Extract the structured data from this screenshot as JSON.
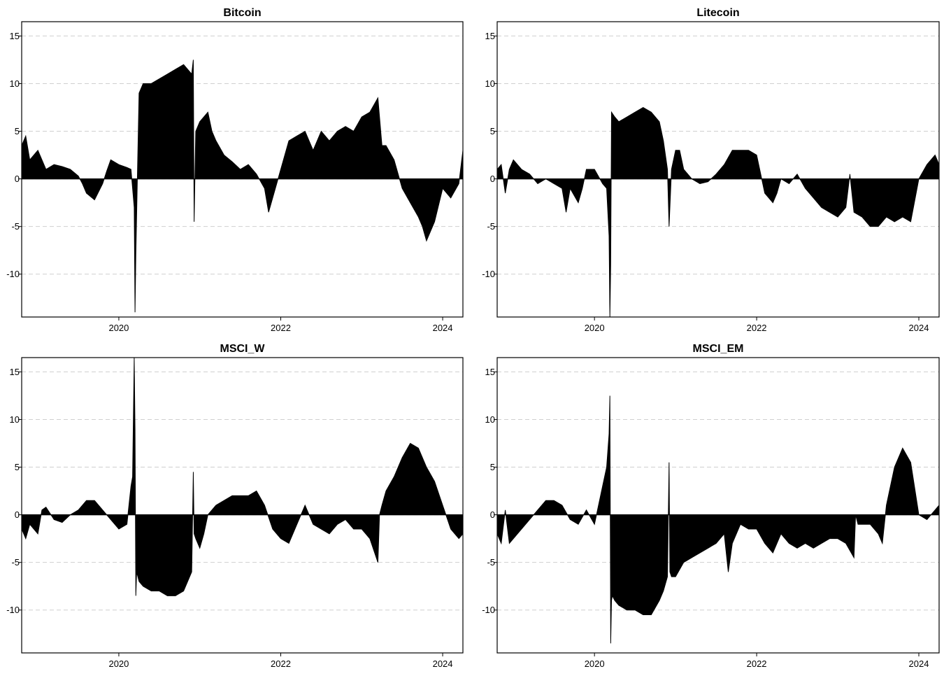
{
  "chart_data": [
    {
      "type": "area",
      "title": "Bitcoin",
      "xlabel": "",
      "ylabel": "",
      "xlim": [
        2018.8,
        2024.25
      ],
      "ylim": [
        -14.5,
        16.5
      ],
      "xticks": [
        2020,
        2022,
        2024
      ],
      "yticks": [
        -10,
        -5,
        0,
        5,
        10,
        15
      ],
      "grid": "dashed horizontal",
      "x": [
        2018.8,
        2018.85,
        2018.9,
        2019.0,
        2019.1,
        2019.2,
        2019.3,
        2019.4,
        2019.5,
        2019.55,
        2019.6,
        2019.7,
        2019.8,
        2019.85,
        2019.9,
        2020.0,
        2020.1,
        2020.15,
        2020.18,
        2020.19,
        2020.2,
        2020.21,
        2020.25,
        2020.3,
        2020.4,
        2020.5,
        2020.6,
        2020.7,
        2020.8,
        2020.85,
        2020.9,
        2020.92,
        2020.93,
        2020.95,
        2021.0,
        2021.1,
        2021.15,
        2021.2,
        2021.3,
        2021.4,
        2021.5,
        2021.6,
        2021.7,
        2021.8,
        2021.85,
        2021.9,
        2022.0,
        2022.1,
        2022.2,
        2022.3,
        2022.4,
        2022.5,
        2022.6,
        2022.7,
        2022.8,
        2022.9,
        2023.0,
        2023.1,
        2023.2,
        2023.25,
        2023.3,
        2023.4,
        2023.5,
        2023.6,
        2023.7,
        2023.75,
        2023.8,
        2023.9,
        2024.0,
        2024.1,
        2024.2,
        2024.25
      ],
      "values": [
        3.5,
        4.5,
        2.0,
        3.0,
        1.0,
        1.5,
        1.3,
        1.0,
        0.3,
        -0.5,
        -1.5,
        -2.2,
        -0.5,
        0.8,
        2.0,
        1.5,
        1.2,
        1.0,
        -2.0,
        -3.0,
        -14.0,
        -8.0,
        9.0,
        10.0,
        10.0,
        10.5,
        11.0,
        11.5,
        12.0,
        11.5,
        11.0,
        12.5,
        -4.5,
        5.0,
        6.0,
        7.0,
        5.0,
        4.0,
        2.5,
        1.8,
        1.0,
        1.5,
        0.5,
        -1.0,
        -3.5,
        -2.0,
        1.0,
        4.0,
        4.5,
        5.0,
        3.0,
        5.0,
        4.0,
        5.0,
        5.5,
        5.0,
        6.5,
        7.0,
        8.5,
        3.5,
        3.5,
        2.0,
        -1.0,
        -2.5,
        -4.0,
        -5.0,
        -6.5,
        -4.5,
        -1.0,
        -2.0,
        -0.5,
        3.0
      ]
    },
    {
      "type": "area",
      "title": "Litecoin",
      "xlabel": "",
      "ylabel": "",
      "xlim": [
        2018.8,
        2024.25
      ],
      "ylim": [
        -14.5,
        16.5
      ],
      "xticks": [
        2020,
        2022,
        2024
      ],
      "yticks": [
        -10,
        -5,
        0,
        5,
        10,
        15
      ],
      "grid": "dashed horizontal",
      "x": [
        2018.8,
        2018.85,
        2018.9,
        2018.95,
        2019.0,
        2019.1,
        2019.2,
        2019.3,
        2019.4,
        2019.5,
        2019.6,
        2019.65,
        2019.7,
        2019.8,
        2019.85,
        2019.9,
        2020.0,
        2020.1,
        2020.15,
        2020.18,
        2020.19,
        2020.2,
        2020.21,
        2020.25,
        2020.3,
        2020.4,
        2020.5,
        2020.6,
        2020.7,
        2020.8,
        2020.85,
        2020.9,
        2020.92,
        2020.95,
        2021.0,
        2021.05,
        2021.1,
        2021.2,
        2021.3,
        2021.4,
        2021.5,
        2021.6,
        2021.7,
        2021.8,
        2021.9,
        2022.0,
        2022.1,
        2022.2,
        2022.25,
        2022.3,
        2022.4,
        2022.5,
        2022.6,
        2022.7,
        2022.8,
        2022.9,
        2023.0,
        2023.1,
        2023.15,
        2023.2,
        2023.3,
        2023.4,
        2023.5,
        2023.6,
        2023.7,
        2023.8,
        2023.9,
        2024.0,
        2024.1,
        2024.2,
        2024.25
      ],
      "values": [
        1.0,
        1.5,
        -1.5,
        1.0,
        2.0,
        1.0,
        0.5,
        -0.5,
        0.0,
        -0.5,
        -1.0,
        -3.5,
        -1.0,
        -2.5,
        -1.0,
        1.0,
        1.0,
        -0.5,
        -1.0,
        -6.0,
        -14.5,
        -9.0,
        7.0,
        6.5,
        6.0,
        6.5,
        7.0,
        7.5,
        7.0,
        6.0,
        4.0,
        1.0,
        -5.0,
        1.0,
        3.0,
        3.0,
        1.0,
        0.0,
        -0.5,
        -0.3,
        0.5,
        1.5,
        3.0,
        3.0,
        3.0,
        2.5,
        -1.5,
        -2.5,
        -1.5,
        0.0,
        -0.5,
        0.5,
        -1.0,
        -2.0,
        -3.0,
        -3.5,
        -4.0,
        -3.0,
        0.5,
        -3.5,
        -4.0,
        -5.0,
        -5.0,
        -4.0,
        -4.5,
        -4.0,
        -4.5,
        0.0,
        1.5,
        2.5,
        1.5
      ]
    },
    {
      "type": "area",
      "title": "MSCI_W",
      "xlabel": "",
      "ylabel": "",
      "xlim": [
        2018.8,
        2024.25
      ],
      "ylim": [
        -14.5,
        16.5
      ],
      "xticks": [
        2020,
        2022,
        2024
      ],
      "yticks": [
        -10,
        -5,
        0,
        5,
        10,
        15
      ],
      "grid": "dashed horizontal",
      "x": [
        2018.8,
        2018.85,
        2018.9,
        2019.0,
        2019.05,
        2019.1,
        2019.2,
        2019.3,
        2019.4,
        2019.5,
        2019.6,
        2019.7,
        2019.8,
        2019.9,
        2020.0,
        2020.1,
        2020.15,
        2020.17,
        2020.19,
        2020.2,
        2020.21,
        2020.22,
        2020.25,
        2020.3,
        2020.4,
        2020.5,
        2020.6,
        2020.7,
        2020.8,
        2020.85,
        2020.9,
        2020.92,
        2020.93,
        2020.95,
        2021.0,
        2021.05,
        2021.1,
        2021.2,
        2021.3,
        2021.4,
        2021.5,
        2021.6,
        2021.7,
        2021.8,
        2021.9,
        2022.0,
        2022.1,
        2022.2,
        2022.3,
        2022.4,
        2022.5,
        2022.6,
        2022.7,
        2022.8,
        2022.9,
        2023.0,
        2023.1,
        2023.2,
        2023.22,
        2023.25,
        2023.3,
        2023.4,
        2023.5,
        2023.6,
        2023.7,
        2023.8,
        2023.9,
        2024.0,
        2024.1,
        2024.2,
        2024.25
      ],
      "values": [
        -1.5,
        -2.5,
        -1.0,
        -2.0,
        0.5,
        0.8,
        -0.5,
        -0.8,
        0.0,
        0.5,
        1.5,
        1.5,
        0.5,
        -0.5,
        -1.5,
        -1.0,
        3.0,
        4.0,
        16.5,
        9.0,
        -8.5,
        -6.0,
        -7.0,
        -7.5,
        -8.0,
        -8.0,
        -8.5,
        -8.5,
        -8.0,
        -7.0,
        -6.0,
        4.5,
        -2.0,
        -2.5,
        -3.5,
        -2.0,
        0.0,
        1.0,
        1.5,
        2.0,
        2.0,
        2.0,
        2.5,
        1.0,
        -1.5,
        -2.5,
        -3.0,
        -1.0,
        1.0,
        -1.0,
        -1.5,
        -2.0,
        -1.0,
        -0.5,
        -1.5,
        -1.5,
        -2.5,
        -5.0,
        0.0,
        1.0,
        2.5,
        4.0,
        6.0,
        7.5,
        7.0,
        5.0,
        3.5,
        1.0,
        -1.5,
        -2.5,
        -2.0
      ]
    },
    {
      "type": "area",
      "title": "MSCI_EM",
      "xlabel": "",
      "ylabel": "",
      "xlim": [
        2018.8,
        2024.25
      ],
      "ylim": [
        -14.5,
        16.5
      ],
      "xticks": [
        2020,
        2022,
        2024
      ],
      "yticks": [
        -10,
        -5,
        0,
        5,
        10,
        15
      ],
      "grid": "dashed horizontal",
      "x": [
        2018.8,
        2018.85,
        2018.9,
        2018.95,
        2019.0,
        2019.1,
        2019.2,
        2019.3,
        2019.4,
        2019.5,
        2019.6,
        2019.7,
        2019.8,
        2019.9,
        2020.0,
        2020.1,
        2020.15,
        2020.18,
        2020.19,
        2020.2,
        2020.21,
        2020.22,
        2020.25,
        2020.3,
        2020.4,
        2020.5,
        2020.6,
        2020.7,
        2020.8,
        2020.85,
        2020.9,
        2020.92,
        2020.93,
        2020.95,
        2021.0,
        2021.1,
        2021.2,
        2021.3,
        2021.4,
        2021.5,
        2021.6,
        2021.65,
        2021.7,
        2021.8,
        2021.9,
        2022.0,
        2022.1,
        2022.2,
        2022.3,
        2022.4,
        2022.5,
        2022.6,
        2022.7,
        2022.8,
        2022.9,
        2023.0,
        2023.1,
        2023.2,
        2023.22,
        2023.25,
        2023.3,
        2023.4,
        2023.5,
        2023.55,
        2023.6,
        2023.7,
        2023.8,
        2023.9,
        2024.0,
        2024.1,
        2024.2,
        2024.25
      ],
      "values": [
        -2.0,
        -3.0,
        0.5,
        -3.0,
        -2.5,
        -1.5,
        -0.5,
        0.5,
        1.5,
        1.5,
        1.0,
        -0.5,
        -1.0,
        0.5,
        -1.0,
        3.0,
        5.0,
        8.5,
        12.5,
        -13.5,
        -9.0,
        -8.5,
        -9.0,
        -9.5,
        -10.0,
        -10.0,
        -10.5,
        -10.5,
        -9.0,
        -8.0,
        -6.5,
        5.5,
        -6.0,
        -6.5,
        -6.5,
        -5.0,
        -4.5,
        -4.0,
        -3.5,
        -3.0,
        -2.0,
        -6.0,
        -3.0,
        -1.0,
        -1.5,
        -1.5,
        -3.0,
        -4.0,
        -2.0,
        -3.0,
        -3.5,
        -3.0,
        -3.5,
        -3.0,
        -2.5,
        -2.5,
        -3.0,
        -4.5,
        0.0,
        -1.0,
        -1.0,
        -1.0,
        -2.0,
        -3.0,
        1.0,
        5.0,
        7.0,
        5.5,
        0.0,
        -0.5,
        0.5,
        1.0
      ]
    }
  ]
}
